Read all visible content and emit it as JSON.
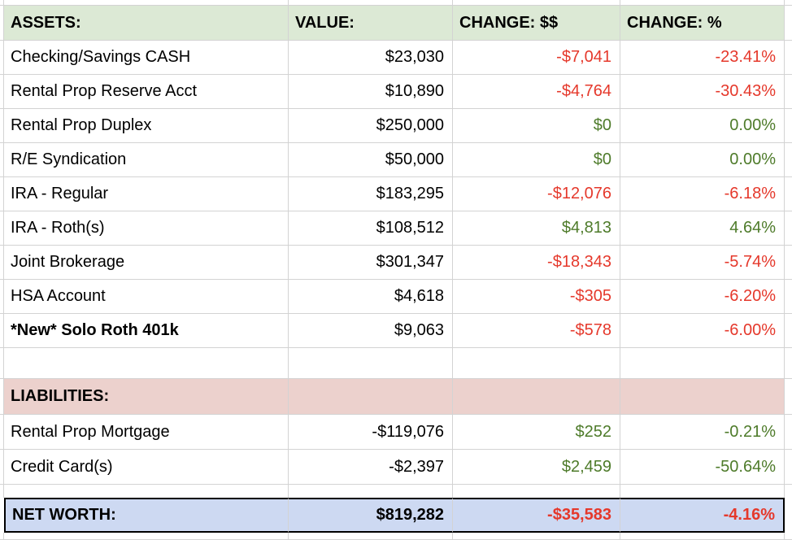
{
  "colors": {
    "header_bg": "#dce9d5",
    "liabilities_bg": "#ecd1cd",
    "networth_bg": "#cdd9f2",
    "negative": "#e5382b",
    "positive": "#4e7b2a",
    "gridline": "#d3d3d3",
    "text": "#000000"
  },
  "header": {
    "assets": "ASSETS:",
    "value": "VALUE:",
    "change_dollars": "CHANGE: $$",
    "change_percent": "CHANGE: %"
  },
  "assets": [
    {
      "label": "Checking/Savings CASH",
      "value": "$23,030",
      "change": "-$7,041",
      "percent": "-23.41%",
      "sentiment": "negative"
    },
    {
      "label": "Rental Prop Reserve Acct",
      "value": "$10,890",
      "change": "-$4,764",
      "percent": "-30.43%",
      "sentiment": "negative"
    },
    {
      "label": "Rental Prop Duplex",
      "value": "$250,000",
      "change": "$0",
      "percent": "0.00%",
      "sentiment": "positive"
    },
    {
      "label": "R/E Syndication",
      "value": "$50,000",
      "change": "$0",
      "percent": "0.00%",
      "sentiment": "positive"
    },
    {
      "label": "IRA - Regular",
      "value": "$183,295",
      "change": "-$12,076",
      "percent": "-6.18%",
      "sentiment": "negative"
    },
    {
      "label": "IRA - Roth(s)",
      "value": "$108,512",
      "change": "$4,813",
      "percent": "4.64%",
      "sentiment": "positive"
    },
    {
      "label": "Joint Brokerage",
      "value": "$301,347",
      "change": "-$18,343",
      "percent": "-5.74%",
      "sentiment": "negative"
    },
    {
      "label": "HSA Account",
      "value": "$4,618",
      "change": "-$305",
      "percent": "-6.20%",
      "sentiment": "negative"
    },
    {
      "label": "*New* Solo Roth 401k",
      "value": "$9,063",
      "change": "-$578",
      "percent": "-6.00%",
      "sentiment": "negative"
    }
  ],
  "liabilities_header": "LIABILITIES:",
  "liabilities": [
    {
      "label": "Rental Prop Mortgage",
      "value": "-$119,076",
      "change": "$252",
      "percent": "-0.21%",
      "sentiment": "positive"
    },
    {
      "label": "Credit Card(s)",
      "value": "-$2,397",
      "change": "$2,459",
      "percent": "-50.64%",
      "sentiment": "positive"
    }
  ],
  "net_worth": {
    "label": "NET WORTH:",
    "value": "$819,282",
    "change": "-$35,583",
    "percent": "-4.16%",
    "sentiment": "negative"
  }
}
